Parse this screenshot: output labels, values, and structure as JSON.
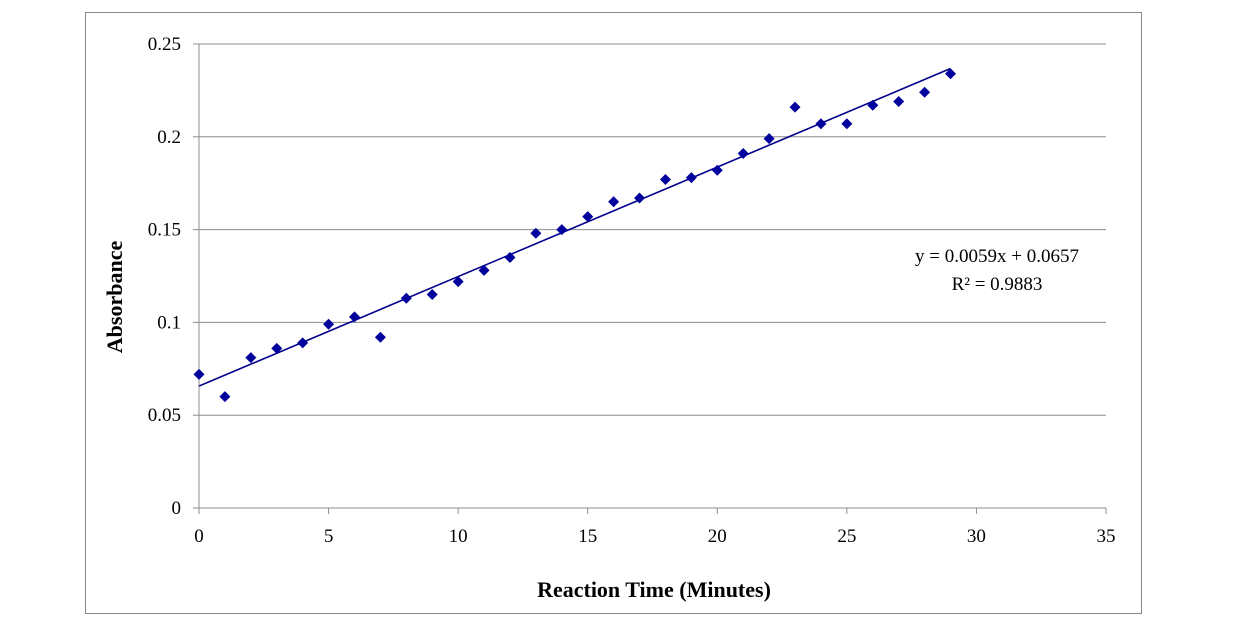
{
  "chart_data": {
    "type": "scatter",
    "title": "",
    "xlabel": "Reaction Time (Minutes)",
    "ylabel": "Absorbance",
    "xlim": [
      0,
      35
    ],
    "ylim": [
      0,
      0.25
    ],
    "x_ticks": [
      0,
      5,
      10,
      15,
      20,
      25,
      30,
      35
    ],
    "y_ticks": [
      0,
      0.05,
      0.1,
      0.15,
      0.2,
      0.25
    ],
    "x_tick_labels": [
      "0",
      "5",
      "10",
      "15",
      "20",
      "25",
      "30",
      "35"
    ],
    "y_tick_labels": [
      "0",
      "0.05",
      "0.1",
      "0.15",
      "0.2",
      "0.25"
    ],
    "grid": "horizontal",
    "legend": "none",
    "series": [
      {
        "marker": "diamond",
        "color": "#00009C",
        "x": [
          0,
          1,
          2,
          3,
          4,
          5,
          6,
          7,
          8,
          9,
          10,
          11,
          12,
          13,
          14,
          15,
          16,
          17,
          18,
          19,
          20,
          21,
          22,
          23,
          24,
          25,
          26,
          27,
          28,
          29
        ],
        "y": [
          0.072,
          0.06,
          0.081,
          0.086,
          0.089,
          0.099,
          0.103,
          0.092,
          0.113,
          0.115,
          0.122,
          0.128,
          0.135,
          0.148,
          0.15,
          0.157,
          0.165,
          0.167,
          0.177,
          0.178,
          0.182,
          0.191,
          0.199,
          0.216,
          0.207,
          0.207,
          0.217,
          0.219,
          0.224,
          0.234
        ]
      }
    ],
    "trendline": {
      "type": "linear",
      "slope": 0.0059,
      "intercept": 0.0657,
      "x_range": [
        0,
        29
      ],
      "color": "#00008B"
    },
    "annotations": {
      "equation": "y = 0.0059x + 0.0657",
      "r_squared": "R² = 0.9883"
    }
  }
}
